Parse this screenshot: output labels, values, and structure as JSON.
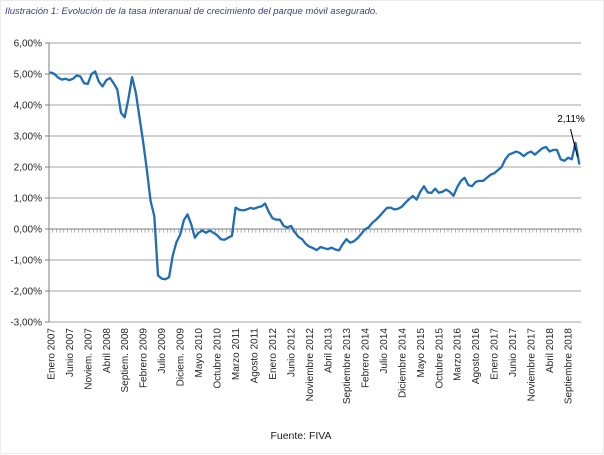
{
  "chart_data": {
    "type": "line",
    "title": "Ilustración 1: Evolución de la tasa interanual de crecimiento del parque móvil asegurado.",
    "source": "Fuente: FIVA",
    "last_point_label": "2,11%",
    "line_color": "#1F6DB5",
    "title_color": "#3B4378",
    "grid": true,
    "legend": "none",
    "y_unit": "%",
    "ylim": [
      -3.0,
      6.0
    ],
    "y_tick_labels": [
      "6,00%",
      "5,00%",
      "4,00%",
      "3,00%",
      "2,00%",
      "1,00%",
      "0,00%",
      "-1,00%",
      "-2,00%",
      "-3,00%"
    ],
    "x_start": "Enero 2007",
    "x_end": "Diciembre 2018",
    "x_frequency": "monthly",
    "x_tick_step": 5,
    "x_tick_labels": [
      "Enero 2007",
      "Junio 2007",
      "Noviem. 2007",
      "Abril 2008",
      "Septiem. 2008",
      "Febrero 2009",
      "Julio 2009",
      "Diciem. 2009",
      "Mayo 2010",
      "Octubre 2010",
      "Marzo 2011",
      "Agosto 2011",
      "Enero 2012",
      "Junio 2012",
      "Noviembre 2012",
      "Abril 2013",
      "Septiembre 2013",
      "Febrero 2014",
      "Julio 2014",
      "Diciembre 2014",
      "Mayo 2015",
      "Octubre 2015",
      "Marzo 2016",
      "Agosto 2016",
      "Enero 2017",
      "Junio 2017",
      "Noviembre 2017",
      "Abril 2018",
      "Septiembre 2018"
    ],
    "values": [
      5.05,
      5.0,
      4.88,
      4.82,
      4.85,
      4.8,
      4.85,
      4.95,
      4.92,
      4.7,
      4.68,
      5.0,
      5.08,
      4.75,
      4.6,
      4.8,
      4.87,
      4.7,
      4.5,
      3.75,
      3.6,
      4.2,
      4.9,
      4.4,
      3.6,
      2.8,
      1.9,
      0.9,
      0.42,
      -1.5,
      -1.6,
      -1.62,
      -1.55,
      -0.85,
      -0.42,
      -0.18,
      0.28,
      0.47,
      0.15,
      -0.28,
      -0.12,
      -0.05,
      -0.12,
      -0.05,
      -0.12,
      -0.2,
      -0.33,
      -0.35,
      -0.28,
      -0.22,
      0.69,
      0.62,
      0.6,
      0.63,
      0.68,
      0.65,
      0.7,
      0.73,
      0.82,
      0.55,
      0.35,
      0.3,
      0.3,
      0.1,
      0.05,
      0.1,
      -0.1,
      -0.25,
      -0.33,
      -0.48,
      -0.57,
      -0.62,
      -0.68,
      -0.58,
      -0.62,
      -0.65,
      -0.6,
      -0.66,
      -0.69,
      -0.49,
      -0.33,
      -0.44,
      -0.4,
      -0.3,
      -0.16,
      -0.01,
      0.05,
      0.2,
      0.3,
      0.42,
      0.55,
      0.68,
      0.69,
      0.63,
      0.65,
      0.72,
      0.85,
      0.97,
      1.06,
      0.95,
      1.2,
      1.38,
      1.18,
      1.16,
      1.3,
      1.17,
      1.2,
      1.27,
      1.2,
      1.07,
      1.35,
      1.55,
      1.65,
      1.42,
      1.38,
      1.52,
      1.55,
      1.55,
      1.65,
      1.75,
      1.8,
      1.9,
      2.0,
      2.25,
      2.4,
      2.45,
      2.5,
      2.45,
      2.35,
      2.45,
      2.5,
      2.4,
      2.5,
      2.6,
      2.65,
      2.5,
      2.55,
      2.55,
      2.25,
      2.2,
      2.3,
      2.25,
      2.78,
      2.11
    ]
  }
}
